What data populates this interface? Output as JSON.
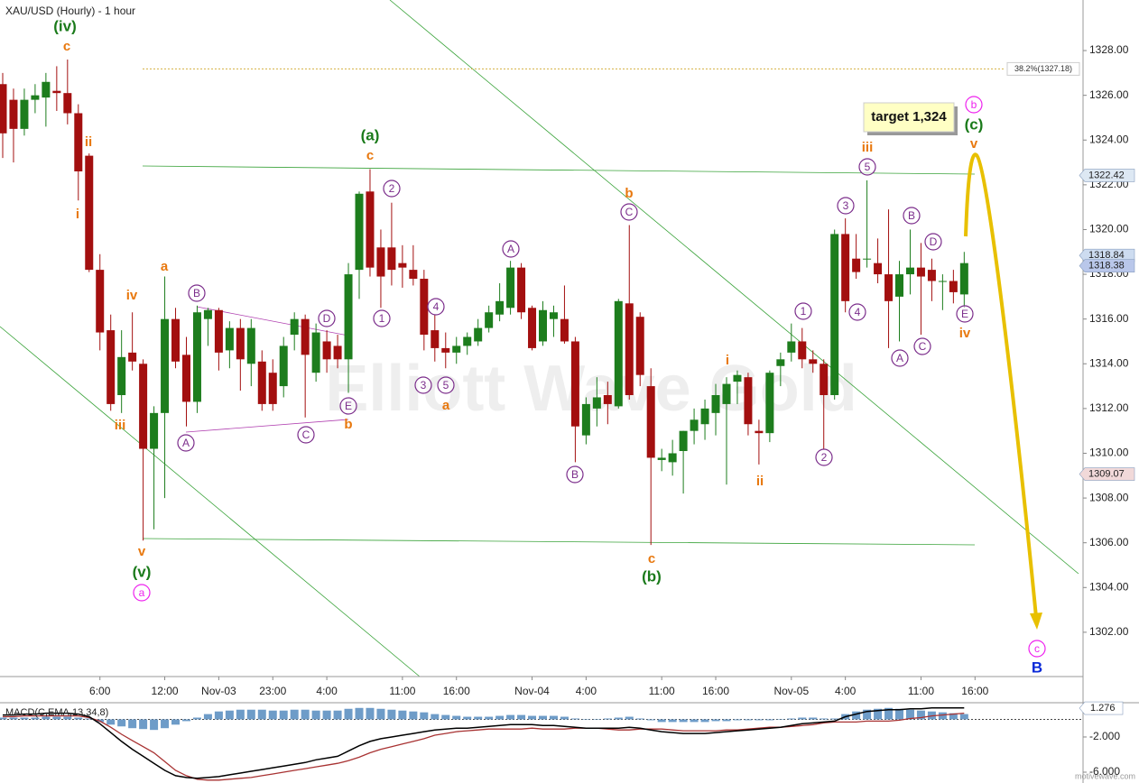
{
  "chart_data": {
    "type": "candlestick",
    "title": "XAU/USD (Hourly) - 1 hour",
    "watermark": "Elliott Wave Gold",
    "target_label": "target 1,324",
    "categories": [
      null,
      null,
      null,
      null,
      null,
      null,
      null,
      null,
      null,
      "6:00",
      null,
      null,
      null,
      null,
      null,
      "12:00",
      null,
      null,
      null,
      null,
      "Nov-03",
      null,
      null,
      null,
      null,
      "23:00",
      null,
      null,
      null,
      null,
      "4:00",
      null,
      null,
      null,
      null,
      null,
      null,
      "11:00",
      null,
      null,
      null,
      null,
      "16:00",
      null,
      null,
      null,
      null,
      null,
      null,
      "Nov-04",
      null,
      null,
      null,
      null,
      "4:00",
      null,
      null,
      null,
      null,
      null,
      null,
      "11:00",
      null,
      null,
      null,
      null,
      "16:00",
      null,
      null,
      null,
      null,
      null,
      null,
      "Nov-05",
      null,
      null,
      null,
      null,
      "4:00",
      null,
      null,
      null,
      null,
      null,
      null,
      "11:00",
      null,
      null,
      null,
      null,
      "16:00"
    ],
    "open": [
      1326.5,
      1325.8,
      1324.5,
      1325.8,
      1325.9,
      1326.2,
      1326.1,
      1325.2,
      1323.3,
      1318.2,
      1315.5,
      1312.6,
      1314.5,
      1314,
      1310.2,
      1311.8,
      1316,
      1314.4,
      1312.3,
      1316,
      1316.4,
      1314.6,
      1315.6,
      1314,
      1314.1,
      1313.6,
      1313,
      1315.3,
      1316,
      1313.6,
      1315,
      1314.8,
      1314.2,
      1318.2,
      1321.7,
      1319.2,
      1319.2,
      1318.5,
      1318.2,
      1317.8,
      1315.5,
      1314.7,
      1314.5,
      1314.8,
      1315,
      1315.6,
      1316.2,
      1316.5,
      1318.3,
      1316.5,
      1315,
      1316,
      1316,
      1315,
      1310.8,
      1312,
      1312.6,
      1312.1,
      1316.7,
      1316.1,
      1313,
      1309.7,
      1309.6,
      1310.1,
      1311,
      1311.3,
      1311.8,
      1312.2,
      1313.2,
      1313.4,
      1311,
      1310.9,
      1313.9,
      1314.5,
      1315,
      1314.2,
      1314,
      1312.6,
      1319.8,
      1318.7,
      1318.7,
      1318.5,
      1318,
      1317,
      1318,
      1318.3,
      1318.2,
      1317.7,
      1317.7,
      1317.1,
      null
    ],
    "high": [
      1327,
      1326.3,
      1326.3,
      1326.5,
      1327,
      1327.3,
      1327.6,
      1325.6,
      1323.4,
      1318.9,
      1316.2,
      1315.5,
      1316.3,
      1314.2,
      1312.1,
      1317.9,
      1316.5,
      1315.2,
      1316.6,
      1316.5,
      1316.5,
      1315.9,
      1316,
      1316,
      1314.6,
      1314.2,
      1315.2,
      1316.3,
      1316.2,
      1315.8,
      1315.5,
      1315.3,
      1318.5,
      1321.7,
      1322.7,
      1320,
      1321.2,
      1319.3,
      1319.3,
      1318.2,
      1316.2,
      1315.4,
      1315.2,
      1315.4,
      1316,
      1316.6,
      1317.6,
      1318.6,
      1318.5,
      1316.6,
      1316.8,
      1316.6,
      1317.5,
      1315.2,
      1312.5,
      1313.4,
      1313.2,
      1316.9,
      1320.2,
      1316.3,
      1313.8,
      1310.2,
      1310.6,
      1311,
      1312,
      1312.4,
      1313.1,
      1313.4,
      1313.7,
      1313.6,
      1311.5,
      1313.7,
      1314.5,
      1315.8,
      1315.6,
      1314.6,
      1314.2,
      1320,
      1320.5,
      1319.8,
      1322.2,
      1319.6,
      1320.9,
      1318.6,
      1320,
      1319.4,
      1318.7,
      1318,
      1318.2,
      1319,
      null
    ],
    "low": [
      1323.2,
      1323,
      1324.2,
      1325.2,
      1324.6,
      1325.3,
      1324.7,
      1321.3,
      1318.1,
      1314.6,
      1311.9,
      1311.8,
      1313.7,
      1306.1,
      1306.6,
      1308,
      1313.8,
      1311.2,
      1311.8,
      1314.8,
      1313.7,
      1313.8,
      1312.8,
      1313,
      1311.9,
      1311.9,
      1312.5,
      1314.6,
      1311.6,
      1313.2,
      1313.6,
      1313.8,
      1312.7,
      1316.9,
      1317.9,
      1316.5,
      1317.5,
      1317.4,
      1317.5,
      1314.6,
      1314.1,
      1313.8,
      1314,
      1314.4,
      1314.8,
      1315.4,
      1315.9,
      1316.2,
      1316,
      1314.6,
      1314.8,
      1315.2,
      1314.9,
      1309.6,
      1310.4,
      1311.2,
      1311.3,
      1312,
      1312.4,
      1313,
      1305.9,
      1309.2,
      1309,
      1308.2,
      1310.4,
      1310.6,
      1310.8,
      1308.6,
      1312.2,
      1310.8,
      1309.5,
      1310.5,
      1313,
      1314.1,
      1313.8,
      1313.6,
      1310.2,
      1312.4,
      1316.3,
      1317.8,
      1318.3,
      1317.6,
      1314.7,
      1315,
      1317.1,
      1315.3,
      1316.8,
      1316.4,
      1316.7,
      1316.5,
      null
    ],
    "close": [
      1324.3,
      1324.5,
      1325.8,
      1326,
      1326.6,
      1326.1,
      1325.2,
      1322.6,
      1318.2,
      1315.4,
      1312.2,
      1314.3,
      1314.1,
      1310.2,
      1311.8,
      1316,
      1314.1,
      1312.3,
      1316.3,
      1316.4,
      1314.5,
      1315.6,
      1314.2,
      1315.6,
      1312.2,
      1312.2,
      1314.8,
      1316,
      1314.4,
      1315.4,
      1314.2,
      1314.2,
      1318,
      1321.6,
      1318.3,
      1317.9,
      1318.2,
      1318.3,
      1317.8,
      1315.3,
      1314.7,
      1314.5,
      1314.8,
      1315.2,
      1315.6,
      1316.3,
      1316.8,
      1318.3,
      1316.3,
      1314.7,
      1316.4,
      1316.3,
      1315,
      1311.2,
      1312.2,
      1312.5,
      1312.2,
      1316.8,
      1312.6,
      1313.5,
      1309.8,
      1309.8,
      1310,
      1311,
      1311.5,
      1312,
      1312.6,
      1313.1,
      1313.5,
      1311.3,
      1310.9,
      1313.6,
      1314.2,
      1315,
      1314.2,
      1314,
      1312.6,
      1319.8,
      1316.8,
      1318.1,
      1318.7,
      1318,
      1316.8,
      1318,
      1318.3,
      1317.9,
      1317.7,
      1317.7,
      1317.2,
      1318.5,
      null
    ],
    "up_color": "#1d7d1d",
    "down_color": "#a30f0f",
    "ylim": [
      1300.02,
      1330.26
    ],
    "yticks": [
      {
        "value": 1302,
        "label": "1302.00"
      },
      {
        "value": 1304,
        "label": "1304.00"
      },
      {
        "value": 1306,
        "label": "1306.00"
      },
      {
        "value": 1308,
        "label": "1308.00"
      },
      {
        "value": 1310,
        "label": "1310.00"
      },
      {
        "value": 1312,
        "label": "1312.00"
      },
      {
        "value": 1314,
        "label": "1314.00"
      },
      {
        "value": 1316,
        "label": "1316.00"
      },
      {
        "value": 1318,
        "label": "1318.00"
      },
      {
        "value": 1320,
        "label": "1320.00"
      },
      {
        "value": 1322,
        "label": "1322.00"
      },
      {
        "value": 1324,
        "label": "1324.00"
      },
      {
        "value": 1326,
        "label": "1326.00"
      },
      {
        "value": 1328,
        "label": "1328.00"
      }
    ],
    "fib_level": {
      "value": 1327.18,
      "label": "38.2%(1327.18)",
      "color": "#d4b040"
    },
    "price_tags": [
      {
        "value": 1322.42,
        "color": "#dde8f3"
      },
      {
        "value": 1318.84,
        "color": "#cddcf0"
      },
      {
        "value": 1318.38,
        "color": "#b9c7ea"
      },
      {
        "value": 1309.07,
        "color": "#f1d9d9"
      }
    ],
    "annotations": [
      {
        "text": "(iv)",
        "color": "#1a7a1a"
      },
      {
        "text": "c",
        "color": "#e8780e"
      },
      {
        "text": "ii",
        "color": "#e8780e"
      },
      {
        "text": "i",
        "color": "#e8780e"
      },
      {
        "text": "iv",
        "color": "#e8780e"
      },
      {
        "text": "iii",
        "color": "#e8780e"
      },
      {
        "text": "v",
        "color": "#e8780e"
      },
      {
        "text": "(v)",
        "color": "#1a7a1a"
      },
      {
        "text": "a",
        "color": "#ee22ee",
        "circled": true
      },
      {
        "text": "a",
        "color": "#e8780e"
      },
      {
        "text": "B",
        "color": "#7b2d8b",
        "circled": true
      },
      {
        "text": "A",
        "color": "#7b2d8b",
        "circled": true
      },
      {
        "text": "C",
        "color": "#7b2d8b",
        "circled": true
      },
      {
        "text": "D",
        "color": "#7b2d8b",
        "circled": true
      },
      {
        "text": "E",
        "color": "#7b2d8b",
        "circled": true
      },
      {
        "text": "b",
        "color": "#e8780e"
      },
      {
        "text": "(a)",
        "color": "#1a7a1a"
      },
      {
        "text": "c",
        "color": "#e8780e"
      },
      {
        "text": "2",
        "color": "#7b2d8b",
        "circled": true
      },
      {
        "text": "1",
        "color": "#7b2d8b",
        "circled": true
      },
      {
        "text": "4",
        "color": "#7b2d8b",
        "circled": true
      },
      {
        "text": "3",
        "color": "#7b2d8b",
        "circled": true
      },
      {
        "text": "5",
        "color": "#7b2d8b",
        "circled": true
      },
      {
        "text": "a",
        "color": "#e8780e"
      },
      {
        "text": "A",
        "color": "#7b2d8b",
        "circled": true
      },
      {
        "text": "b",
        "color": "#e8780e"
      },
      {
        "text": "C",
        "color": "#7b2d8b",
        "circled": true
      },
      {
        "text": "B",
        "color": "#7b2d8b",
        "circled": true
      },
      {
        "text": "c",
        "color": "#e8780e"
      },
      {
        "text": "(b)",
        "color": "#1a7a1a"
      },
      {
        "text": "i",
        "color": "#e8780e"
      },
      {
        "text": "ii",
        "color": "#e8780e"
      },
      {
        "text": "1",
        "color": "#7b2d8b",
        "circled": true
      },
      {
        "text": "2",
        "color": "#7b2d8b",
        "circled": true
      },
      {
        "text": "3",
        "color": "#7b2d8b",
        "circled": true
      },
      {
        "text": "iii",
        "color": "#e8780e"
      },
      {
        "text": "5",
        "color": "#7b2d8b",
        "circled": true
      },
      {
        "text": "4",
        "color": "#7b2d8b",
        "circled": true
      },
      {
        "text": "B",
        "color": "#7b2d8b",
        "circled": true
      },
      {
        "text": "D",
        "color": "#7b2d8b",
        "circled": true
      },
      {
        "text": "A",
        "color": "#7b2d8b",
        "circled": true
      },
      {
        "text": "C",
        "color": "#7b2d8b",
        "circled": true
      },
      {
        "text": "E",
        "color": "#7b2d8b",
        "circled": true
      },
      {
        "text": "iv",
        "color": "#e8780e"
      },
      {
        "text": "b",
        "color": "#ee22ee",
        "circled": true
      },
      {
        "text": "(c)",
        "color": "#1a7a1a"
      },
      {
        "text": "v",
        "color": "#e8780e"
      },
      {
        "text": "c",
        "color": "#ee22ee",
        "circled": true
      },
      {
        "text": "B",
        "color": "#0a2ad8"
      }
    ],
    "indicator": {
      "type": "macd",
      "title": "MACD(C,EMA,13,34,8)",
      "histogram": [
        0.2,
        0.2,
        0.2,
        0.2,
        0.3,
        0.3,
        0.3,
        0.2,
        0.1,
        -0.3,
        -0.6,
        -0.8,
        -1.0,
        -1.1,
        -1.2,
        -1.0,
        -0.6,
        -0.2,
        0.2,
        0.6,
        0.9,
        1.0,
        1.1,
        1.1,
        1.1,
        1.0,
        1.0,
        1.1,
        1.1,
        1.0,
        1.0,
        1.0,
        1.2,
        1.3,
        1.3,
        1.2,
        1.1,
        1.0,
        0.9,
        0.8,
        0.6,
        0.5,
        0.4,
        0.3,
        0.3,
        0.3,
        0.4,
        0.5,
        0.5,
        0.4,
        0.4,
        0.4,
        0.3,
        0.1,
        0.0,
        0.0,
        0.1,
        0.2,
        0.3,
        0.1,
        -0.1,
        -0.3,
        -0.3,
        -0.3,
        -0.3,
        -0.3,
        -0.2,
        -0.2,
        -0.1,
        -0.1,
        -0.1,
        -0.1,
        0.0,
        0.1,
        0.2,
        0.2,
        0.1,
        0.1,
        0.6,
        0.9,
        1.1,
        1.2,
        1.3,
        1.2,
        1.1,
        1.0,
        0.9,
        0.8,
        0.7,
        0.6,
        null
      ],
      "macd": [
        0.5,
        0.5,
        0.6,
        0.6,
        0.7,
        0.7,
        0.7,
        0.6,
        0.3,
        -0.5,
        -1.5,
        -2.5,
        -3.4,
        -4.2,
        -5.0,
        -5.8,
        -6.4,
        -6.6,
        -6.7,
        -6.6,
        -6.5,
        -6.3,
        -6.1,
        -5.9,
        -5.7,
        -5.5,
        -5.3,
        -5.1,
        -4.9,
        -4.6,
        -4.4,
        -4.2,
        -3.6,
        -3.0,
        -2.5,
        -2.2,
        -2.0,
        -1.8,
        -1.6,
        -1.4,
        -1.2,
        -1.1,
        -1.0,
        -1.0,
        -0.9,
        -0.8,
        -0.7,
        -0.6,
        -0.6,
        -0.6,
        -0.7,
        -0.7,
        -0.8,
        -0.9,
        -1.0,
        -1.0,
        -1.0,
        -1.0,
        -0.9,
        -1.0,
        -1.2,
        -1.4,
        -1.5,
        -1.6,
        -1.6,
        -1.6,
        -1.5,
        -1.4,
        -1.3,
        -1.2,
        -1.1,
        -1.0,
        -0.9,
        -0.7,
        -0.5,
        -0.4,
        -0.3,
        -0.2,
        0.3,
        0.6,
        0.9,
        1.0,
        1.1,
        1.1,
        1.2,
        1.2,
        1.3,
        1.3,
        1.3,
        1.3,
        null
      ],
      "signal": [
        0.3,
        0.3,
        0.4,
        0.4,
        0.4,
        0.4,
        0.4,
        0.4,
        0.2,
        -0.2,
        -0.9,
        -1.7,
        -2.4,
        -3.1,
        -3.8,
        -4.8,
        -5.8,
        -6.4,
        -6.8,
        -6.9,
        -6.9,
        -6.8,
        -6.7,
        -6.6,
        -6.4,
        -6.2,
        -6.0,
        -5.8,
        -5.6,
        -5.4,
        -5.2,
        -5.0,
        -4.7,
        -4.3,
        -3.8,
        -3.4,
        -3.1,
        -2.8,
        -2.5,
        -2.2,
        -1.8,
        -1.6,
        -1.4,
        -1.3,
        -1.2,
        -1.1,
        -1.1,
        -1.1,
        -1.1,
        -1.0,
        -1.1,
        -1.1,
        -1.1,
        -1.0,
        -1.0,
        -1.0,
        -1.1,
        -1.2,
        -1.2,
        -1.1,
        -1.1,
        -1.1,
        -1.2,
        -1.3,
        -1.3,
        -1.3,
        -1.3,
        -1.2,
        -1.2,
        -1.1,
        -1.0,
        -0.9,
        -0.9,
        -0.8,
        -0.7,
        -0.6,
        -0.4,
        -0.3,
        -0.3,
        -0.3,
        -0.2,
        -0.2,
        -0.2,
        -0.1,
        0.1,
        0.2,
        0.4,
        0.5,
        0.6,
        0.7,
        null
      ],
      "histogram_color": "#6e9cc8",
      "macd_color": "#000000",
      "signal_color": "#a83232",
      "ylim": [
        -7.23,
        1.79
      ],
      "yticks": [
        {
          "value": -2,
          "label": "-2.000"
        },
        {
          "value": -6,
          "label": "-6.000"
        }
      ],
      "value_tag": 1.276
    }
  },
  "footer": "motivewave.com"
}
